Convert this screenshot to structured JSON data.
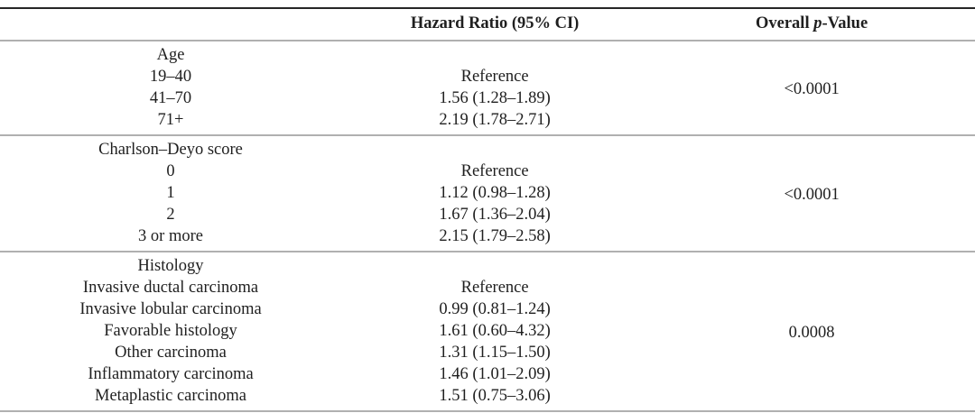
{
  "table": {
    "columns": {
      "variable": "",
      "hazard_ratio": "Hazard Ratio (95% CI)",
      "pvalue_prefix": "Overall ",
      "pvalue_italic": "p",
      "pvalue_suffix": "-Value"
    },
    "sections": [
      {
        "group": "Age",
        "p_value": "<0.0001",
        "rows": [
          {
            "label": "19–40",
            "hr": "Reference"
          },
          {
            "label": "41–70",
            "hr": "1.56 (1.28–1.89)"
          },
          {
            "label": "71+",
            "hr": "2.19 (1.78–2.71)"
          }
        ]
      },
      {
        "group": "Charlson–Deyo score",
        "p_value": "<0.0001",
        "rows": [
          {
            "label": "0",
            "hr": "Reference"
          },
          {
            "label": "1",
            "hr": "1.12 (0.98–1.28)"
          },
          {
            "label": "2",
            "hr": "1.67 (1.36–2.04)"
          },
          {
            "label": "3 or more",
            "hr": "2.15 (1.79–2.58)"
          }
        ]
      },
      {
        "group": "Histology",
        "p_value": "0.0008",
        "rows": [
          {
            "label": "Invasive ductal carcinoma",
            "hr": "Reference"
          },
          {
            "label": "Invasive lobular carcinoma",
            "hr": "0.99 (0.81–1.24)"
          },
          {
            "label": "Favorable histology",
            "hr": "1.61 (0.60–4.32)"
          },
          {
            "label": "Other carcinoma",
            "hr": "1.31 (1.15–1.50)"
          },
          {
            "label": "Inflammatory carcinoma",
            "hr": "1.46 (1.01–2.09)"
          },
          {
            "label": "Metaplastic carcinoma",
            "hr": "1.51 (0.75–3.06)"
          }
        ]
      }
    ]
  },
  "colors": {
    "text": "#1f1f1f",
    "top_rule": "#262626",
    "divider_rule": "#b0b0b0",
    "background": "#ffffff"
  }
}
